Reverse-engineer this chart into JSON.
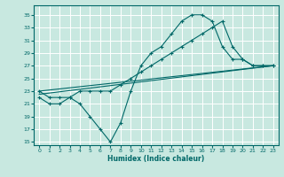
{
  "bg_color": "#c8e8e0",
  "grid_color": "#b8d8d0",
  "line_color": "#006868",
  "xlabel": "Humidex (Indice chaleur)",
  "xlim": [
    -0.5,
    23.5
  ],
  "ylim": [
    14.5,
    36.5
  ],
  "xticks": [
    0,
    1,
    2,
    3,
    4,
    5,
    6,
    7,
    8,
    9,
    10,
    11,
    12,
    13,
    14,
    15,
    16,
    17,
    18,
    19,
    20,
    21,
    22,
    23
  ],
  "yticks": [
    15,
    17,
    19,
    21,
    23,
    25,
    27,
    29,
    31,
    33,
    35
  ],
  "curve1_x": [
    0,
    1,
    2,
    3,
    4,
    5,
    6,
    7,
    8,
    9,
    10,
    11,
    12,
    13,
    14,
    15,
    16,
    17,
    18,
    19,
    20,
    21,
    22,
    23
  ],
  "curve1_y": [
    22,
    21,
    21,
    22,
    21,
    19,
    17,
    15,
    18,
    23,
    27,
    29,
    30,
    32,
    34,
    35,
    35,
    34,
    30,
    28,
    28,
    27,
    27,
    27
  ],
  "curve2_x": [
    0,
    1,
    2,
    3,
    4,
    5,
    6,
    7,
    8,
    9,
    10,
    11,
    12,
    13,
    14,
    15,
    16,
    17,
    18,
    19,
    20,
    21,
    22,
    23
  ],
  "curve2_y": [
    23,
    22,
    22,
    22,
    23,
    23,
    23,
    23,
    24,
    25,
    26,
    27,
    28,
    29,
    30,
    31,
    32,
    33,
    34,
    30,
    28,
    27,
    27,
    27
  ],
  "curve3_x": [
    0,
    23
  ],
  "curve3_y": [
    22.5,
    27
  ],
  "curve4_x": [
    0,
    23
  ],
  "curve4_y": [
    23,
    27
  ]
}
